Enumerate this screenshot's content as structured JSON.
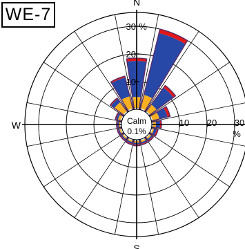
{
  "station": "WE-7",
  "chart_data": {
    "type": "wind-rose",
    "directions": [
      "N",
      "NNE",
      "NE",
      "ENE",
      "E",
      "ESE",
      "SE",
      "SSE",
      "S",
      "SSW",
      "SW",
      "WSW",
      "W",
      "WNW",
      "NW",
      "NNW"
    ],
    "direction_labels": {
      "N": "N",
      "E": "E",
      "S": "S",
      "W": "W"
    },
    "ring_values": [
      10,
      20,
      30
    ],
    "ring_tick_labels": [
      "10",
      "20",
      "30"
    ],
    "unit": "%",
    "rmax": 35,
    "calm_label": "Calm",
    "calm_value": "0.1%",
    "colors": {
      "light": "#d8ecf8",
      "orange": "#f8b020",
      "blue": "#2848a8",
      "red": "#e01818",
      "purple": "#8a2ab0",
      "outline": "#5a2a66"
    },
    "series": [
      {
        "name": "",
        "color": "light",
        "values": [
          0.5,
          0.5,
          0.5,
          0.5,
          0.5,
          0.5,
          0.5,
          0.5,
          0.5,
          0.5,
          0.5,
          0.5,
          0.5,
          0.5,
          0.5,
          0.5
        ]
      },
      {
        "name": "",
        "color": "orange",
        "values": [
          4.0,
          5.0,
          3.0,
          2.5,
          1.0,
          0.5,
          0.6,
          0.6,
          0.6,
          0.5,
          0.5,
          0.5,
          0.5,
          1.0,
          4.0,
          4.5
        ]
      },
      {
        "name": "",
        "color": "blue",
        "values": [
          13.0,
          23.0,
          7.5,
          3.0,
          1.5,
          1.0,
          0.6,
          0.6,
          0.6,
          0.6,
          0.5,
          0.5,
          0.5,
          0.7,
          1.5,
          7.0
        ]
      },
      {
        "name": "",
        "color": "red",
        "values": [
          1.0,
          1.5,
          1.0,
          1.0,
          0.5,
          0.5,
          0.4,
          0.4,
          0.5,
          0.4,
          0.3,
          0.3,
          0.3,
          0.3,
          0.4,
          0.5
        ]
      }
    ]
  }
}
